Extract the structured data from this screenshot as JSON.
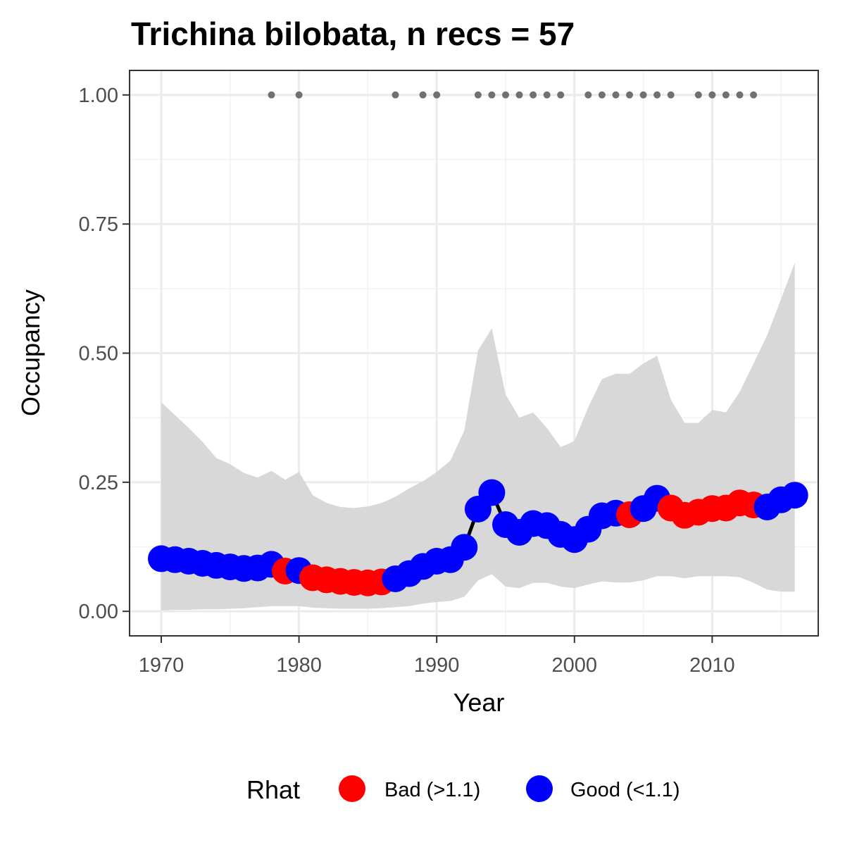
{
  "chart_data": {
    "type": "line",
    "title": "Trichina bilobata, n recs = 57",
    "xlabel": "Year",
    "ylabel": "Occupancy",
    "xlim": [
      1967.7,
      2017.7
    ],
    "ylim": [
      -0.0475,
      1.0475
    ],
    "x_ticks": [
      1970,
      1980,
      1990,
      2000,
      2010
    ],
    "x_tick_labels": [
      "1970",
      "1980",
      "1990",
      "2000",
      "2010"
    ],
    "y_ticks": [
      0,
      0.25,
      0.5,
      0.75,
      1
    ],
    "y_tick_labels": [
      "0.00",
      "0.25",
      "0.50",
      "0.75",
      "1.00"
    ],
    "grid": true,
    "legend": {
      "title": "Rhat",
      "position": "bottom",
      "entries": [
        {
          "label": "Bad (>1.1)",
          "color": "#ff0000"
        },
        {
          "label": "Good (<1.1)",
          "color": "#0000ff"
        }
      ]
    },
    "colors": {
      "bad": "#ff0000",
      "good": "#0000ff",
      "ribbon": "#d6d6d6",
      "line": "#000000",
      "records": "#707070"
    },
    "x": [
      1970,
      1971,
      1972,
      1973,
      1974,
      1975,
      1976,
      1977,
      1978,
      1979,
      1980,
      1981,
      1982,
      1983,
      1984,
      1985,
      1986,
      1987,
      1988,
      1989,
      1990,
      1991,
      1992,
      1993,
      1994,
      1995,
      1996,
      1997,
      1998,
      1999,
      2000,
      2001,
      2002,
      2003,
      2004,
      2005,
      2006,
      2007,
      2008,
      2009,
      2010,
      2011,
      2012,
      2013,
      2014,
      2015,
      2016
    ],
    "occupancy": [
      0.102,
      0.1,
      0.097,
      0.093,
      0.089,
      0.086,
      0.083,
      0.084,
      0.091,
      0.078,
      0.079,
      0.065,
      0.061,
      0.058,
      0.056,
      0.055,
      0.057,
      0.063,
      0.073,
      0.087,
      0.097,
      0.1,
      0.124,
      0.198,
      0.23,
      0.168,
      0.153,
      0.17,
      0.166,
      0.149,
      0.139,
      0.159,
      0.185,
      0.19,
      0.187,
      0.199,
      0.219,
      0.2,
      0.186,
      0.192,
      0.199,
      0.2,
      0.21,
      0.206,
      0.202,
      0.216,
      0.225
    ],
    "lower": [
      0.002,
      0.003,
      0.003,
      0.004,
      0.004,
      0.005,
      0.006,
      0.008,
      0.01,
      0.01,
      0.01,
      0.007,
      0.006,
      0.005,
      0.005,
      0.005,
      0.006,
      0.008,
      0.01,
      0.015,
      0.018,
      0.02,
      0.028,
      0.06,
      0.072,
      0.048,
      0.045,
      0.055,
      0.055,
      0.048,
      0.045,
      0.052,
      0.058,
      0.056,
      0.056,
      0.06,
      0.068,
      0.068,
      0.064,
      0.068,
      0.068,
      0.068,
      0.066,
      0.055,
      0.042,
      0.038,
      0.038
    ],
    "upper": [
      0.405,
      0.38,
      0.355,
      0.328,
      0.297,
      0.285,
      0.268,
      0.259,
      0.272,
      0.255,
      0.27,
      0.225,
      0.21,
      0.202,
      0.2,
      0.203,
      0.21,
      0.222,
      0.238,
      0.252,
      0.27,
      0.292,
      0.35,
      0.505,
      0.548,
      0.42,
      0.375,
      0.385,
      0.355,
      0.318,
      0.33,
      0.395,
      0.45,
      0.46,
      0.46,
      0.48,
      0.495,
      0.41,
      0.365,
      0.365,
      0.39,
      0.385,
      0.425,
      0.48,
      0.535,
      0.605,
      0.675
    ],
    "rhat_status": [
      "good",
      "good",
      "good",
      "good",
      "good",
      "good",
      "good",
      "good",
      "good",
      "bad",
      "good",
      "bad",
      "bad",
      "bad",
      "bad",
      "bad",
      "bad",
      "good",
      "good",
      "good",
      "good",
      "good",
      "good",
      "good",
      "good",
      "good",
      "good",
      "good",
      "good",
      "good",
      "good",
      "good",
      "good",
      "good",
      "bad",
      "good",
      "good",
      "bad",
      "bad",
      "bad",
      "bad",
      "bad",
      "bad",
      "bad",
      "good",
      "good",
      "good"
    ],
    "record_years": [
      1978,
      1980,
      1987,
      1989,
      1990,
      1993,
      1994,
      1995,
      1996,
      1997,
      1998,
      1999,
      2001,
      2002,
      2003,
      2004,
      2005,
      2006,
      2007,
      2009,
      2010,
      2011,
      2012,
      2013
    ],
    "record_value": 1
  }
}
